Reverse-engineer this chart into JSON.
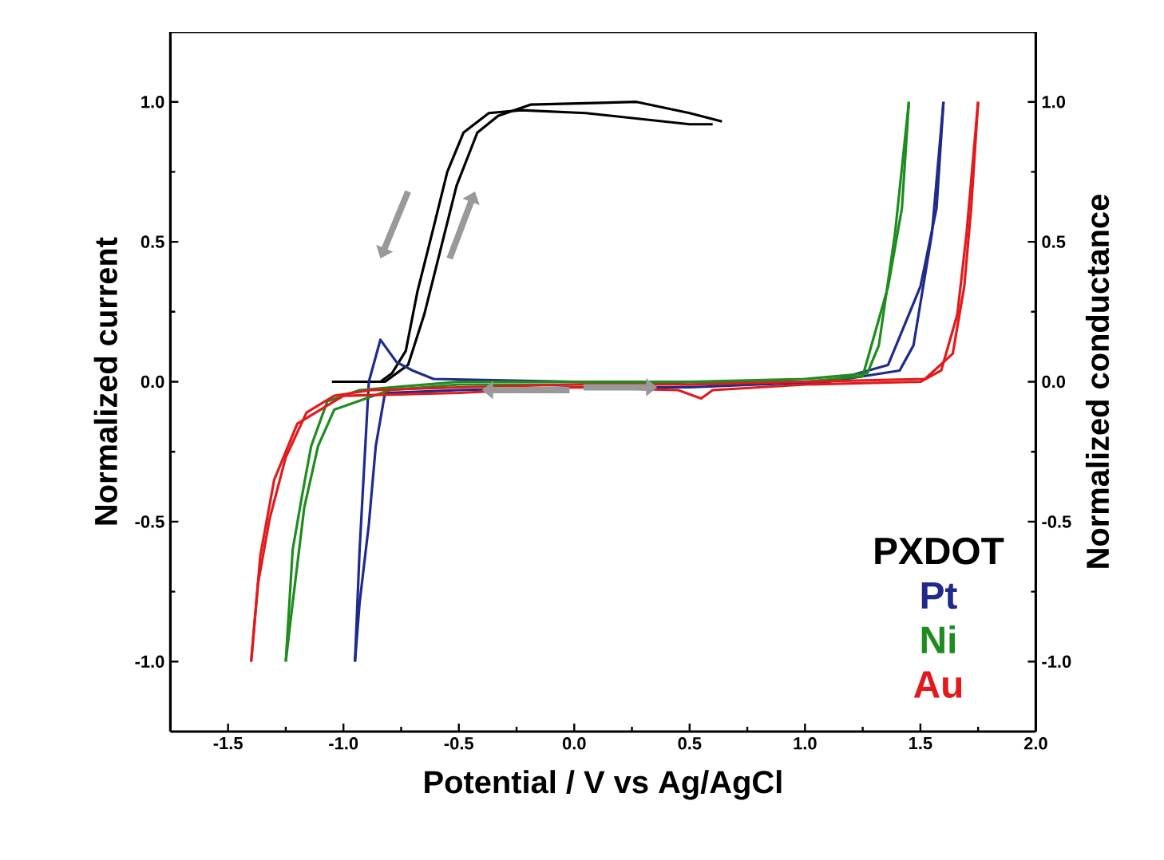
{
  "chart_data": {
    "type": "line",
    "xlabel": "Potential / V vs Ag/AgCl",
    "ylabel": "Normalized current",
    "y2label": "Normalized conductance",
    "xlim": [
      -1.75,
      2.0
    ],
    "ylim": [
      -1.25,
      1.25
    ],
    "y2lim": [
      -1.25,
      1.25
    ],
    "xticks": [
      {
        "value": -1.5,
        "label": "-1.5"
      },
      {
        "value": -1.0,
        "label": "-1.0"
      },
      {
        "value": -0.5,
        "label": "-0.5"
      },
      {
        "value": 0.0,
        "label": "0.0"
      },
      {
        "value": 0.5,
        "label": "0.5"
      },
      {
        "value": 1.0,
        "label": "1.0"
      },
      {
        "value": 1.5,
        "label": "1.5"
      },
      {
        "value": 2.0,
        "label": "2.0"
      }
    ],
    "yticks": [
      {
        "value": -1.0,
        "label": "-1.0"
      },
      {
        "value": -0.5,
        "label": "-0.5"
      },
      {
        "value": 0.0,
        "label": "0.0"
      },
      {
        "value": 0.5,
        "label": "0.5"
      },
      {
        "value": 1.0,
        "label": "1.0"
      }
    ],
    "y2ticks": [
      {
        "value": -1.0,
        "label": "-1.0"
      },
      {
        "value": -0.5,
        "label": "-0.5"
      },
      {
        "value": 0.0,
        "label": "0.0"
      },
      {
        "value": 0.5,
        "label": "0.5"
      },
      {
        "value": 1.0,
        "label": "1.0"
      }
    ],
    "legend": "bottom right",
    "series": [
      {
        "name": "PXDOT",
        "color": "#000000",
        "axis": "y2",
        "x": [
          -1.05,
          -0.82,
          -0.72,
          -0.65,
          -0.58,
          -0.51,
          -0.42,
          -0.33,
          -0.19,
          0.27,
          0.5,
          0.64
        ],
        "values": [
          0.0,
          0.0,
          0.06,
          0.24,
          0.47,
          0.7,
          0.89,
          0.95,
          0.99,
          1.0,
          0.96,
          0.93
        ]
      },
      {
        "color": "#000000",
        "axis": "y2",
        "x": [
          0.6,
          0.5,
          0.05,
          -0.23,
          -0.37,
          -0.48,
          -0.55,
          -0.61,
          -0.68,
          -0.73,
          -0.79,
          -0.84
        ],
        "values": [
          0.92,
          0.92,
          0.96,
          0.97,
          0.96,
          0.89,
          0.75,
          0.55,
          0.32,
          0.11,
          0.03,
          0.0
        ]
      },
      {
        "name": "Pt",
        "color": "#1f2a8c",
        "x": [
          -0.95,
          -0.93,
          -0.91,
          -0.89,
          -0.84,
          -0.77,
          -0.7,
          -0.61,
          0.0,
          0.5,
          1.1,
          1.36,
          1.5,
          1.57,
          1.6
        ],
        "values": [
          -1.0,
          -0.6,
          -0.3,
          0.0,
          0.15,
          0.07,
          0.04,
          0.01,
          0.0,
          -0.01,
          0.0,
          0.06,
          0.34,
          0.62,
          1.0
        ]
      },
      {
        "color": "#1f2a8c",
        "x": [
          1.6,
          1.55,
          1.47,
          1.41,
          1.1,
          0.5,
          0.0,
          -0.5,
          -0.82,
          -0.86,
          -0.89,
          -0.93,
          -0.95
        ],
        "values": [
          1.0,
          0.53,
          0.13,
          0.04,
          0.0,
          -0.02,
          -0.02,
          -0.03,
          -0.04,
          -0.23,
          -0.51,
          -0.79,
          -1.0
        ]
      },
      {
        "name": "Ni",
        "color": "#1e8c1e",
        "x": [
          -1.25,
          -1.22,
          -1.18,
          -1.14,
          -1.07,
          -0.93,
          -0.5,
          0.0,
          0.5,
          1.0,
          1.25,
          1.36,
          1.42,
          1.45
        ],
        "values": [
          -1.0,
          -0.6,
          -0.41,
          -0.23,
          -0.07,
          -0.03,
          0.0,
          0.0,
          0.0,
          0.0,
          0.02,
          0.34,
          0.62,
          1.0
        ]
      },
      {
        "color": "#1e8c1e",
        "x": [
          1.45,
          1.39,
          1.32,
          1.27,
          1.0,
          0.5,
          0.0,
          -0.5,
          -0.8,
          -1.04,
          -1.11,
          -1.17,
          -1.22,
          -1.25
        ],
        "values": [
          1.0,
          0.53,
          0.13,
          0.03,
          0.01,
          0.0,
          -0.01,
          -0.01,
          -0.03,
          -0.1,
          -0.23,
          -0.45,
          -0.79,
          -1.0
        ]
      },
      {
        "name": "Au",
        "color": "#e31a1c",
        "x": [
          -1.4,
          -1.37,
          -1.32,
          -1.25,
          -1.16,
          -1.04,
          -0.88,
          -0.5,
          0.0,
          0.5,
          1.0,
          1.52,
          1.64,
          1.69,
          1.72,
          1.75
        ],
        "values": [
          -1.0,
          -0.72,
          -0.49,
          -0.27,
          -0.11,
          -0.05,
          -0.03,
          -0.02,
          -0.01,
          -0.01,
          0.0,
          0.01,
          0.1,
          0.34,
          0.62,
          1.0
        ]
      },
      {
        "color": "#e31a1c",
        "x": [
          1.75,
          1.7,
          1.66,
          1.59,
          1.5,
          1.0,
          0.6,
          0.55,
          0.45,
          0.0,
          -0.5,
          -1.0,
          -1.2,
          -1.3,
          -1.36,
          -1.4
        ],
        "values": [
          1.0,
          0.53,
          0.24,
          0.04,
          0.0,
          -0.01,
          -0.03,
          -0.06,
          -0.03,
          -0.02,
          -0.04,
          -0.05,
          -0.15,
          -0.35,
          -0.62,
          -1.0
        ]
      }
    ]
  }
}
